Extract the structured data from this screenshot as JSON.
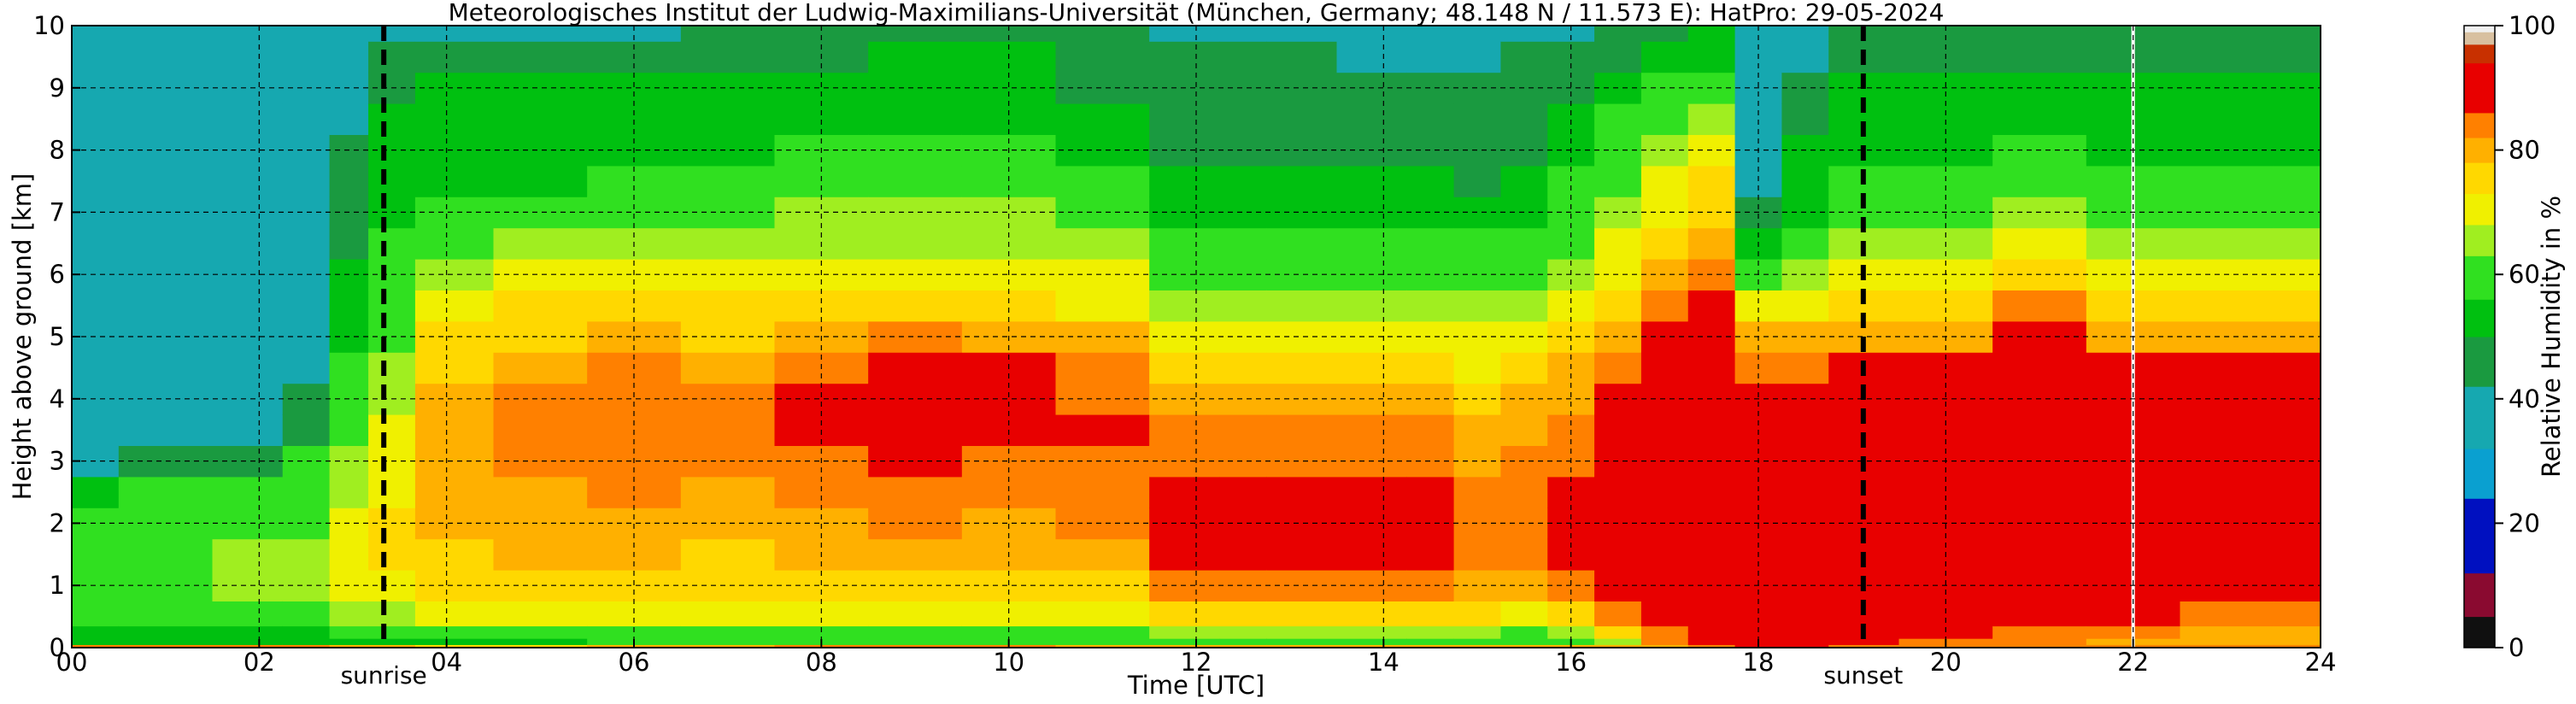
{
  "chart_data": {
    "type": "heatmap",
    "title": "Meteorologisches Institut der Ludwig-Maximilians-Universität (München, Germany; 48.148 N / 11.573 E):    HatPro: 29-05-2024",
    "xlabel": "Time [UTC]",
    "ylabel": "Height above ground [km]",
    "colorbar_label": "Relative Humidity in %",
    "xlim": [
      0,
      24
    ],
    "ylim": [
      0,
      10
    ],
    "x_ticks": [
      0,
      2,
      4,
      6,
      8,
      10,
      12,
      14,
      16,
      18,
      20,
      22,
      24
    ],
    "x_tick_labels": [
      "00",
      "02",
      "04",
      "06",
      "08",
      "10",
      "12",
      "14",
      "16",
      "18",
      "20",
      "22",
      "24"
    ],
    "y_ticks": [
      0,
      1,
      2,
      3,
      4,
      5,
      6,
      7,
      8,
      9,
      10
    ],
    "y_tick_labels": [
      "0",
      "1",
      "2",
      "3",
      "4",
      "5",
      "6",
      "7",
      "8",
      "9",
      "10"
    ],
    "colorbar_ticks": [
      0,
      20,
      40,
      60,
      80,
      100
    ],
    "colorbar_tick_labels": [
      "0",
      "20",
      "40",
      "60",
      "80",
      "100"
    ],
    "grid": true,
    "colormap": [
      {
        "from": 0,
        "to": 5,
        "color": "#101010"
      },
      {
        "from": 5,
        "to": 12,
        "color": "#8a0a30"
      },
      {
        "from": 12,
        "to": 24,
        "color": "#0010c0"
      },
      {
        "from": 24,
        "to": 32,
        "color": "#0aa0d0"
      },
      {
        "from": 32,
        "to": 42,
        "color": "#16a8b0"
      },
      {
        "from": 42,
        "to": 50,
        "color": "#1a9a40"
      },
      {
        "from": 50,
        "to": 56,
        "color": "#00c010"
      },
      {
        "from": 56,
        "to": 63,
        "color": "#30e020"
      },
      {
        "from": 63,
        "to": 68,
        "color": "#a0ee20"
      },
      {
        "from": 68,
        "to": 73,
        "color": "#f0f000"
      },
      {
        "from": 73,
        "to": 78,
        "color": "#ffd800"
      },
      {
        "from": 78,
        "to": 82,
        "color": "#ffb000"
      },
      {
        "from": 82,
        "to": 86,
        "color": "#ff8000"
      },
      {
        "from": 86,
        "to": 94,
        "color": "#e80000"
      },
      {
        "from": 94,
        "to": 97,
        "color": "#c83000"
      },
      {
        "from": 97,
        "to": 99,
        "color": "#d8c0a0"
      },
      {
        "from": 99,
        "to": 100,
        "color": "#f0f0f0"
      }
    ],
    "events": [
      {
        "label": "sunrise",
        "time": 3.33
      },
      {
        "label": "sunset",
        "time": 19.12
      }
    ],
    "data_gap_time": 22.0,
    "height_levels_km": [
      0,
      0.1,
      0.2,
      0.5,
      1,
      1.5,
      2,
      2.5,
      3,
      3.5,
      4,
      4.5,
      5,
      5.5,
      6,
      6.5,
      7,
      7.5,
      8,
      8.5,
      9,
      9.5,
      10
    ],
    "times_utc": [
      0,
      1,
      2,
      2.5,
      3,
      3.33,
      4,
      5,
      6,
      7,
      8,
      9,
      10,
      11,
      12,
      12.5,
      13,
      14,
      14.5,
      15,
      15.5,
      16,
      16.5,
      17,
      17.5,
      18,
      18.5,
      19,
      20,
      21,
      22,
      23,
      24
    ],
    "relative_humidity": [
      [
        85,
        52,
        55,
        58,
        62,
        60,
        56,
        52,
        40,
        40,
        40,
        40,
        40,
        40,
        40,
        40,
        40,
        40,
        40,
        40,
        40,
        40,
        40
      ],
      [
        85,
        50,
        52,
        56,
        62,
        62,
        58,
        56,
        44,
        40,
        40,
        40,
        40,
        40,
        40,
        40,
        40,
        40,
        40,
        40,
        40,
        40,
        40
      ],
      [
        85,
        50,
        52,
        58,
        64,
        64,
        60,
        58,
        48,
        40,
        40,
        40,
        40,
        40,
        40,
        40,
        40,
        40,
        40,
        40,
        40,
        40,
        40
      ],
      [
        85,
        50,
        54,
        60,
        66,
        66,
        62,
        62,
        58,
        48,
        42,
        40,
        40,
        40,
        40,
        40,
        40,
        40,
        40,
        40,
        40,
        40,
        40
      ],
      [
        80,
        52,
        56,
        64,
        70,
        70,
        68,
        66,
        64,
        62,
        60,
        56,
        54,
        52,
        52,
        48,
        46,
        46,
        44,
        40,
        38,
        36,
        36
      ],
      [
        78,
        52,
        56,
        66,
        72,
        74,
        74,
        72,
        70,
        68,
        66,
        64,
        62,
        60,
        58,
        56,
        54,
        54,
        52,
        50,
        48,
        46,
        40
      ],
      [
        75,
        54,
        60,
        70,
        74,
        76,
        78,
        79,
        80,
        80,
        79,
        77,
        74,
        70,
        66,
        62,
        56,
        52,
        50,
        50,
        50,
        45,
        40
      ],
      [
        75,
        55,
        62,
        72,
        76,
        78,
        79,
        80,
        82,
        83,
        82,
        80,
        77,
        73,
        68,
        63,
        58,
        54,
        52,
        50,
        50,
        46,
        40
      ],
      [
        78,
        56,
        62,
        72,
        76,
        78,
        80,
        82,
        84,
        85,
        84,
        82,
        78,
        74,
        70,
        65,
        60,
        56,
        54,
        52,
        50,
        46,
        40
      ],
      [
        80,
        58,
        60,
        70,
        75,
        77,
        78,
        80,
        82,
        83,
        82,
        80,
        77,
        73,
        68,
        64,
        60,
        58,
        55,
        52,
        50,
        48,
        42
      ],
      [
        82,
        60,
        60,
        70,
        75,
        78,
        80,
        82,
        84,
        86,
        87,
        84,
        80,
        75,
        70,
        66,
        63,
        60,
        56,
        52,
        50,
        48,
        44
      ],
      [
        82,
        60,
        60,
        68,
        74,
        78,
        82,
        84,
        86,
        88,
        89,
        87,
        82,
        76,
        70,
        66,
        64,
        62,
        58,
        54,
        52,
        50,
        45
      ],
      [
        82,
        60,
        60,
        68,
        74,
        78,
        80,
        82,
        85,
        87,
        88,
        86,
        80,
        74,
        70,
        66,
        64,
        62,
        58,
        54,
        52,
        50,
        45
      ],
      [
        80,
        60,
        62,
        70,
        76,
        80,
        82,
        84,
        85,
        86,
        85,
        82,
        78,
        72,
        68,
        64,
        60,
        56,
        52,
        50,
        48,
        46,
        42
      ],
      [
        80,
        60,
        64,
        74,
        82,
        86,
        88,
        86,
        84,
        82,
        80,
        76,
        72,
        66,
        62,
        58,
        54,
        52,
        48,
        46,
        44,
        42,
        40
      ],
      [
        80,
        60,
        64,
        74,
        82,
        88,
        88,
        86,
        84,
        82,
        80,
        76,
        72,
        66,
        62,
        58,
        54,
        52,
        48,
        46,
        44,
        42,
        40
      ],
      [
        80,
        60,
        64,
        74,
        82,
        88,
        90,
        88,
        84,
        82,
        80,
        76,
        72,
        66,
        62,
        58,
        54,
        52,
        48,
        46,
        44,
        42,
        40
      ],
      [
        80,
        62,
        66,
        76,
        84,
        88,
        88,
        86,
        84,
        82,
        80,
        76,
        72,
        66,
        62,
        58,
        54,
        50,
        46,
        44,
        42,
        40,
        40
      ],
      [
        80,
        62,
        66,
        76,
        84,
        88,
        89,
        86,
        84,
        82,
        80,
        76,
        72,
        66,
        62,
        58,
        54,
        50,
        46,
        44,
        42,
        40,
        40
      ],
      [
        80,
        60,
        64,
        74,
        80,
        84,
        84,
        82,
        80,
        78,
        76,
        72,
        68,
        64,
        60,
        56,
        52,
        48,
        46,
        44,
        42,
        40,
        40
      ],
      [
        80,
        58,
        62,
        72,
        78,
        82,
        84,
        84,
        82,
        80,
        78,
        74,
        70,
        66,
        62,
        58,
        54,
        50,
        48,
        46,
        44,
        42,
        40
      ],
      [
        80,
        60,
        66,
        76,
        84,
        88,
        88,
        86,
        84,
        82,
        80,
        78,
        74,
        70,
        66,
        62,
        58,
        56,
        54,
        50,
        46,
        42,
        40
      ],
      [
        80,
        66,
        74,
        84,
        88,
        90,
        90,
        88,
        87,
        86,
        86,
        84,
        80,
        76,
        72,
        68,
        64,
        62,
        60,
        56,
        52,
        48,
        44
      ],
      [
        80,
        82,
        84,
        88,
        90,
        90,
        90,
        90,
        90,
        90,
        89,
        88,
        86,
        84,
        80,
        76,
        72,
        70,
        66,
        60,
        56,
        52,
        48
      ],
      [
        85,
        86,
        88,
        90,
        90,
        90,
        90,
        90,
        90,
        90,
        90,
        90,
        88,
        86,
        84,
        80,
        76,
        74,
        70,
        64,
        58,
        54,
        50
      ],
      [
        86,
        86,
        88,
        90,
        90,
        90,
        90,
        90,
        90,
        90,
        88,
        84,
        78,
        70,
        60,
        52,
        44,
        40,
        38,
        36,
        36,
        36,
        36
      ],
      [
        86,
        86,
        88,
        90,
        90,
        90,
        90,
        90,
        90,
        90,
        88,
        84,
        78,
        72,
        64,
        58,
        54,
        52,
        50,
        48,
        44,
        40,
        38
      ],
      [
        84,
        86,
        88,
        90,
        90,
        90,
        90,
        90,
        90,
        90,
        90,
        86,
        80,
        74,
        68,
        64,
        60,
        58,
        54,
        52,
        50,
        48,
        44
      ],
      [
        82,
        84,
        86,
        88,
        90,
        90,
        90,
        90,
        90,
        90,
        90,
        86,
        80,
        74,
        68,
        64,
        60,
        58,
        54,
        52,
        50,
        48,
        44
      ],
      [
        82,
        82,
        84,
        86,
        88,
        90,
        90,
        90,
        90,
        90,
        90,
        88,
        86,
        82,
        74,
        68,
        64,
        60,
        56,
        52,
        50,
        48,
        44
      ],
      [
        82,
        80,
        82,
        86,
        88,
        90,
        90,
        90,
        90,
        90,
        90,
        86,
        80,
        74,
        68,
        64,
        60,
        58,
        54,
        52,
        50,
        48,
        44
      ],
      [
        82,
        78,
        80,
        84,
        88,
        90,
        90,
        90,
        90,
        90,
        90,
        86,
        80,
        74,
        68,
        64,
        60,
        58,
        54,
        52,
        50,
        48,
        44
      ],
      [
        82,
        78,
        80,
        84,
        88,
        90,
        90,
        90,
        90,
        90,
        90,
        86,
        80,
        74,
        68,
        64,
        60,
        58,
        54,
        52,
        50,
        48,
        44
      ]
    ]
  }
}
